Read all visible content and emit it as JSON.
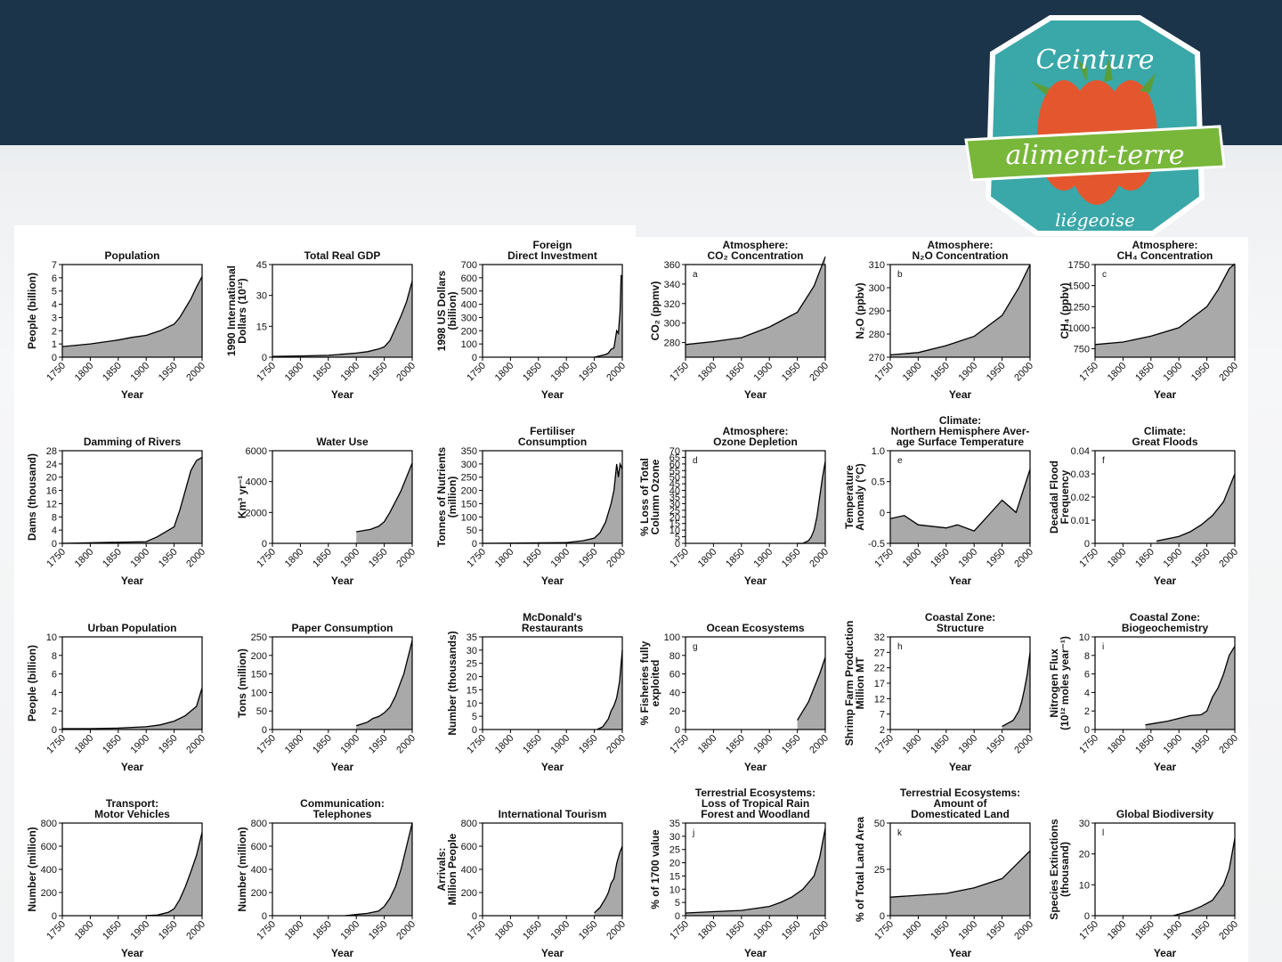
{
  "logo": {
    "top_text": "Ceinture",
    "middle_text": "aliment-terre",
    "bottom_text": "liégeoise"
  },
  "colors": {
    "banner": "#1c3449",
    "badge_fill": "#3aa7a8",
    "ribbon": "#78b73a",
    "carrot": "#e4572e",
    "area_fill": "#a9a9a9"
  },
  "chart_data": [
    {
      "type": "area",
      "title": [
        "Population"
      ],
      "xlabel": "Year",
      "ylabel": [
        "People (billion)"
      ],
      "xlim": [
        1750,
        2000
      ],
      "ylim": [
        0,
        7
      ],
      "yticks": [
        0,
        1,
        2,
        3,
        4,
        5,
        6,
        7
      ],
      "xticks": [
        1750,
        1800,
        1850,
        1900,
        1950,
        2000
      ],
      "x": [
        1750,
        1800,
        1850,
        1875,
        1900,
        1925,
        1950,
        1960,
        1970,
        1980,
        1990,
        2000
      ],
      "y": [
        0.8,
        1.0,
        1.3,
        1.5,
        1.65,
        2.0,
        2.5,
        3.0,
        3.7,
        4.4,
        5.3,
        6.1
      ]
    },
    {
      "type": "area",
      "title": [
        "Total Real GDP"
      ],
      "xlabel": "Year",
      "ylabel": [
        "1990 International",
        "Dollars (10¹²)"
      ],
      "xlim": [
        1750,
        2000
      ],
      "ylim": [
        0,
        45
      ],
      "yticks": [
        0,
        15,
        30,
        45
      ],
      "xticks": [
        1750,
        1800,
        1850,
        1900,
        1950,
        2000
      ],
      "x": [
        1750,
        1800,
        1850,
        1900,
        1920,
        1940,
        1950,
        1960,
        1970,
        1980,
        1990,
        2000
      ],
      "y": [
        0.4,
        0.6,
        0.9,
        2,
        2.7,
        4,
        5,
        8,
        14,
        20,
        27,
        37
      ]
    },
    {
      "type": "area",
      "title": [
        "Foreign",
        "Direct Investment"
      ],
      "xlabel": "Year",
      "ylabel": [
        "1998 US Dollars",
        "(billion)"
      ],
      "xlim": [
        1750,
        2000
      ],
      "ylim": [
        0,
        700
      ],
      "yticks": [
        0,
        100,
        200,
        300,
        400,
        500,
        600,
        700
      ],
      "xticks": [
        1750,
        1800,
        1850,
        1900,
        1950,
        2000
      ],
      "x": [
        1950,
        1960,
        1970,
        1975,
        1980,
        1985,
        1990,
        1993,
        1996,
        1998,
        2000
      ],
      "y": [
        0,
        10,
        20,
        30,
        60,
        70,
        200,
        180,
        350,
        620,
        600
      ]
    },
    {
      "type": "area",
      "title": [
        "Atmosphere:",
        "CO₂ Concentration"
      ],
      "xlabel": "Year",
      "ylabel": [
        "CO₂ (ppmv)"
      ],
      "panel_letter": "a",
      "xlim": [
        1750,
        2000
      ],
      "ylim": [
        265,
        360
      ],
      "yticks": [
        280,
        300,
        320,
        340,
        360
      ],
      "xticks": [
        1750,
        1800,
        1850,
        1900,
        1950,
        2000
      ],
      "x": [
        1750,
        1800,
        1850,
        1900,
        1950,
        1980,
        2000
      ],
      "y": [
        278,
        281,
        285,
        296,
        311,
        338,
        368
      ]
    },
    {
      "type": "area",
      "title": [
        "Atmosphere:",
        "N₂O Concentration"
      ],
      "xlabel": "Year",
      "ylabel": [
        "N₂O  (ppbv)"
      ],
      "panel_letter": "b",
      "xlim": [
        1750,
        2000
      ],
      "ylim": [
        270,
        310
      ],
      "yticks": [
        270,
        280,
        290,
        300,
        310
      ],
      "xticks": [
        1750,
        1800,
        1850,
        1900,
        1950,
        2000
      ],
      "x": [
        1750,
        1800,
        1850,
        1900,
        1950,
        1980,
        2000
      ],
      "y": [
        271,
        272,
        275,
        279,
        288,
        300,
        310
      ]
    },
    {
      "type": "area",
      "title": [
        "Atmosphere:",
        "CH₄ Concentration"
      ],
      "xlabel": "Year",
      "ylabel": [
        "CH₄ (ppbv)"
      ],
      "panel_letter": "c",
      "xlim": [
        1750,
        2000
      ],
      "ylim": [
        650,
        1750
      ],
      "yticks": [
        750,
        1000,
        1250,
        1500,
        1750
      ],
      "xticks": [
        1750,
        1800,
        1850,
        1900,
        1950,
        2000
      ],
      "x": [
        1750,
        1800,
        1850,
        1900,
        1920,
        1950,
        1970,
        1990,
        2000
      ],
      "y": [
        800,
        830,
        900,
        1000,
        1100,
        1250,
        1450,
        1700,
        1760
      ]
    },
    {
      "type": "area",
      "title": [
        "Damming of Rivers"
      ],
      "xlabel": "Year",
      "ylabel": [
        "Dams (thousand)"
      ],
      "xlim": [
        1750,
        2000
      ],
      "ylim": [
        0,
        28
      ],
      "yticks": [
        0,
        4,
        8,
        12,
        16,
        20,
        24,
        28
      ],
      "xticks": [
        1750,
        1800,
        1850,
        1900,
        1950,
        2000
      ],
      "x": [
        1750,
        1900,
        1920,
        1950,
        1960,
        1970,
        1980,
        1990,
        2000
      ],
      "y": [
        0,
        0.5,
        2,
        5,
        10,
        16,
        22,
        25,
        26
      ]
    },
    {
      "type": "area",
      "title": [
        "Water Use"
      ],
      "xlabel": "Year",
      "ylabel": [
        "Km³ yr⁻¹"
      ],
      "xlim": [
        1750,
        2000
      ],
      "ylim": [
        0,
        6000
      ],
      "yticks": [
        0,
        2000,
        4000,
        6000
      ],
      "xticks": [
        1750,
        1800,
        1850,
        1900,
        1950,
        2000
      ],
      "x": [
        1900,
        1925,
        1940,
        1950,
        1960,
        1970,
        1980,
        1990,
        2000
      ],
      "y": [
        750,
        900,
        1100,
        1400,
        2000,
        2700,
        3400,
        4300,
        5200
      ]
    },
    {
      "type": "area",
      "title": [
        "Fertiliser",
        "Consumption"
      ],
      "xlabel": "Year",
      "ylabel": [
        "Tonnes of Nutrients",
        "(million)"
      ],
      "xlim": [
        1750,
        2000
      ],
      "ylim": [
        0,
        350
      ],
      "yticks": [
        0,
        50,
        100,
        150,
        200,
        250,
        300,
        350
      ],
      "xticks": [
        1750,
        1800,
        1850,
        1900,
        1950,
        2000
      ],
      "x": [
        1750,
        1900,
        1930,
        1950,
        1960,
        1970,
        1980,
        1985,
        1988,
        1990,
        1993,
        1996,
        2000
      ],
      "y": [
        0,
        3,
        10,
        20,
        40,
        80,
        150,
        200,
        260,
        300,
        250,
        300,
        280
      ]
    },
    {
      "type": "area",
      "title": [
        "Atmosphere:",
        "Ozone Depletion"
      ],
      "xlabel": "Year",
      "ylabel": [
        "% Loss of Total",
        "Column Ozone"
      ],
      "panel_letter": "d",
      "xlim": [
        1750,
        2000
      ],
      "ylim": [
        0,
        70
      ],
      "yticks": [
        0,
        5,
        10,
        15,
        20,
        25,
        30,
        35,
        40,
        45,
        50,
        55,
        60,
        65,
        70
      ],
      "xticks": [
        1750,
        1800,
        1850,
        1900,
        1950,
        2000
      ],
      "x": [
        1950,
        1960,
        1970,
        1975,
        1980,
        1985,
        1990,
        1995,
        2000
      ],
      "y": [
        0,
        0,
        2,
        5,
        10,
        20,
        35,
        50,
        62
      ]
    },
    {
      "type": "area",
      "title": [
        "Climate:",
        "Northern Hemisphere Aver-",
        "age Surface Temperature"
      ],
      "xlabel": "Year",
      "ylabel": [
        "Temperature",
        "Anomaly (°C)"
      ],
      "panel_letter": "e",
      "xlim": [
        1750,
        2000
      ],
      "ylim": [
        -0.5,
        1.0
      ],
      "yticks": [
        -0.5,
        0,
        0.5,
        1.0
      ],
      "ytick_labels": [
        "-0.5",
        "0",
        "0.5",
        "1.0"
      ],
      "xticks": [
        1750,
        1800,
        1850,
        1900,
        1950,
        2000
      ],
      "baseline": -0.5,
      "x": [
        1750,
        1775,
        1800,
        1850,
        1870,
        1900,
        1920,
        1950,
        1975,
        2000
      ],
      "y": [
        -0.1,
        -0.05,
        -0.2,
        -0.25,
        -0.2,
        -0.3,
        -0.1,
        0.2,
        0.0,
        0.7
      ]
    },
    {
      "type": "area",
      "title": [
        "Climate:",
        "Great Floods"
      ],
      "xlabel": "Year",
      "ylabel": [
        "Decadal Flood",
        "Frequency"
      ],
      "panel_letter": "f",
      "xlim": [
        1750,
        2000
      ],
      "ylim": [
        0,
        0.04
      ],
      "yticks": [
        0,
        0.01,
        0.02,
        0.03,
        0.04
      ],
      "ytick_labels": [
        "0",
        "0.01",
        "0.02",
        "0.03",
        "0.04"
      ],
      "xticks": [
        1750,
        1800,
        1850,
        1900,
        1950,
        2000
      ],
      "x": [
        1860,
        1900,
        1920,
        1940,
        1960,
        1980,
        2000
      ],
      "y": [
        0.001,
        0.003,
        0.005,
        0.008,
        0.012,
        0.018,
        0.03
      ]
    },
    {
      "type": "area",
      "title": [
        "Urban Population"
      ],
      "xlabel": "Year",
      "ylabel": [
        "People (billion)"
      ],
      "xlim": [
        1750,
        2000
      ],
      "ylim": [
        0,
        10
      ],
      "yticks": [
        0,
        2,
        4,
        6,
        8,
        10
      ],
      "xticks": [
        1750,
        1800,
        1850,
        1900,
        1950,
        2000
      ],
      "x": [
        1750,
        1800,
        1850,
        1900,
        1925,
        1950,
        1970,
        1990,
        2000
      ],
      "y": [
        0.1,
        0.1,
        0.15,
        0.3,
        0.5,
        0.9,
        1.5,
        2.5,
        4.5
      ]
    },
    {
      "type": "area",
      "title": [
        "Paper Consumption"
      ],
      "xlabel": "Year",
      "ylabel": [
        "Tons (million)"
      ],
      "xlim": [
        1750,
        2000
      ],
      "ylim": [
        0,
        250
      ],
      "yticks": [
        0,
        50,
        100,
        150,
        200,
        250
      ],
      "xticks": [
        1750,
        1800,
        1850,
        1900,
        1950,
        2000
      ],
      "x": [
        1900,
        1910,
        1920,
        1930,
        1940,
        1950,
        1960,
        1970,
        1975,
        1980,
        1985,
        1990,
        1995,
        2000
      ],
      "y": [
        10,
        15,
        20,
        30,
        35,
        45,
        60,
        90,
        110,
        130,
        150,
        180,
        210,
        240
      ]
    },
    {
      "type": "area",
      "title": [
        "McDonald's",
        "Restaurants"
      ],
      "xlabel": "Year",
      "ylabel": [
        "Number (thousands)"
      ],
      "xlim": [
        1750,
        2000
      ],
      "ylim": [
        0,
        35
      ],
      "yticks": [
        0,
        5,
        10,
        15,
        20,
        25,
        30,
        35
      ],
      "xticks": [
        1750,
        1800,
        1850,
        1900,
        1950,
        2000
      ],
      "x": [
        1955,
        1965,
        1975,
        1980,
        1985,
        1990,
        1995,
        2000
      ],
      "y": [
        0,
        1,
        4,
        7,
        9,
        12,
        18,
        30
      ]
    },
    {
      "type": "area",
      "title": [
        "Ocean Ecosystems"
      ],
      "xlabel": "Year",
      "ylabel": [
        "% Fisheries fully",
        "exploited"
      ],
      "panel_letter": "g",
      "xlim": [
        1750,
        2000
      ],
      "ylim": [
        0,
        100
      ],
      "yticks": [
        0,
        20,
        40,
        60,
        80,
        100
      ],
      "xticks": [
        1750,
        1800,
        1850,
        1900,
        1950,
        2000
      ],
      "x": [
        1950,
        1960,
        1970,
        1980,
        1990,
        2000
      ],
      "y": [
        10,
        20,
        30,
        45,
        60,
        78
      ]
    },
    {
      "type": "area",
      "title": [
        "Coastal Zone:",
        "Structure"
      ],
      "xlabel": "Year",
      "ylabel": [
        "Shrimp Farm Production",
        "Million MT"
      ],
      "panel_letter": "h",
      "xlim": [
        1750,
        2000
      ],
      "ylim": [
        2,
        32
      ],
      "yticks": [
        2,
        7,
        12,
        17,
        22,
        27,
        32
      ],
      "xticks": [
        1750,
        1800,
        1850,
        1900,
        1950,
        2000
      ],
      "x": [
        1950,
        1960,
        1970,
        1980,
        1985,
        1990,
        1995,
        2000
      ],
      "y": [
        3,
        4,
        5,
        8,
        11,
        15,
        20,
        27
      ]
    },
    {
      "type": "area",
      "title": [
        "Coastal Zone:",
        "Biogeochemistry"
      ],
      "xlabel": "Year",
      "ylabel": [
        "Nitrogen Flux",
        "(10¹² moles year⁻¹)"
      ],
      "panel_letter": "i",
      "xlim": [
        1750,
        2000
      ],
      "ylim": [
        0,
        10
      ],
      "yticks": [
        0,
        2,
        4,
        6,
        8,
        10
      ],
      "xticks": [
        1750,
        1800,
        1850,
        1900,
        1950,
        2000
      ],
      "x": [
        1840,
        1860,
        1880,
        1900,
        1920,
        1940,
        1950,
        1960,
        1970,
        1980,
        1990,
        2000
      ],
      "y": [
        0.5,
        0.7,
        0.9,
        1.2,
        1.5,
        1.6,
        2.0,
        3.5,
        4.5,
        6,
        8,
        9
      ]
    },
    {
      "type": "area",
      "title": [
        "Transport:",
        "Motor Vehicles"
      ],
      "xlabel": "Year",
      "ylabel": [
        "Number (million)"
      ],
      "xlim": [
        1750,
        2000
      ],
      "ylim": [
        0,
        800
      ],
      "yticks": [
        0,
        200,
        400,
        600,
        800
      ],
      "xticks": [
        1750,
        1800,
        1850,
        1900,
        1950,
        2000
      ],
      "x": [
        1900,
        1920,
        1940,
        1950,
        1960,
        1970,
        1980,
        1990,
        2000
      ],
      "y": [
        1,
        5,
        30,
        60,
        140,
        250,
        380,
        520,
        720
      ]
    },
    {
      "type": "area",
      "title": [
        "Communication:",
        "Telephones"
      ],
      "xlabel": "Year",
      "ylabel": [
        "Number (million)"
      ],
      "xlim": [
        1750,
        2000
      ],
      "ylim": [
        0,
        800
      ],
      "yticks": [
        0,
        200,
        400,
        600,
        800
      ],
      "xticks": [
        1750,
        1800,
        1850,
        1900,
        1950,
        2000
      ],
      "x": [
        1880,
        1900,
        1920,
        1940,
        1950,
        1960,
        1970,
        1980,
        1990,
        2000
      ],
      "y": [
        0,
        10,
        20,
        40,
        80,
        150,
        250,
        400,
        600,
        800
      ]
    },
    {
      "type": "area",
      "title": [
        "International Tourism"
      ],
      "xlabel": "Year",
      "ylabel": [
        "Arrivals:",
        "Million People"
      ],
      "xlim": [
        1750,
        2000
      ],
      "ylim": [
        0,
        800
      ],
      "yticks": [
        0,
        200,
        400,
        600,
        800
      ],
      "xticks": [
        1750,
        1800,
        1850,
        1900,
        1950,
        2000
      ],
      "x": [
        1950,
        1960,
        1970,
        1975,
        1980,
        1985,
        1990,
        1995,
        2000
      ],
      "y": [
        25,
        70,
        150,
        200,
        280,
        320,
        450,
        540,
        600
      ]
    },
    {
      "type": "area",
      "title": [
        "Terrestrial Ecosystems:",
        "Loss of Tropical Rain",
        "Forest and Woodland"
      ],
      "xlabel": "Year",
      "ylabel": [
        "% of 1700 value"
      ],
      "panel_letter": "j",
      "xlim": [
        1750,
        2000
      ],
      "ylim": [
        0,
        35
      ],
      "yticks": [
        0,
        5,
        10,
        15,
        20,
        25,
        30,
        35
      ],
      "xticks": [
        1750,
        1800,
        1850,
        1900,
        1950,
        2000
      ],
      "x": [
        1750,
        1800,
        1850,
        1900,
        1920,
        1940,
        1960,
        1980,
        1990,
        2000
      ],
      "y": [
        1,
        1.5,
        2,
        3.5,
        5,
        7,
        10,
        15,
        22,
        33
      ]
    },
    {
      "type": "area",
      "title": [
        "Terrestrial Ecosystems:",
        "Amount of",
        "Domesticated Land"
      ],
      "xlabel": "Year",
      "ylabel": [
        "% of Total Land Area"
      ],
      "panel_letter": "k",
      "xlim": [
        1750,
        2000
      ],
      "ylim": [
        0,
        50
      ],
      "yticks": [
        0,
        25,
        50
      ],
      "xticks": [
        1750,
        1800,
        1850,
        1900,
        1950,
        2000
      ],
      "x": [
        1750,
        1800,
        1850,
        1900,
        1950,
        2000
      ],
      "y": [
        10,
        11,
        12,
        15,
        20,
        35
      ]
    },
    {
      "type": "area",
      "title": [
        "Global Biodiversity"
      ],
      "xlabel": "Year",
      "ylabel": [
        "Species Extinctions",
        "(thousand)"
      ],
      "panel_letter": "l",
      "xlim": [
        1750,
        2000
      ],
      "ylim": [
        0,
        30
      ],
      "yticks": [
        0,
        10,
        20,
        30
      ],
      "xticks": [
        1750,
        1800,
        1850,
        1900,
        1950,
        2000
      ],
      "x": [
        1890,
        1900,
        1920,
        1940,
        1960,
        1980,
        1990,
        2000
      ],
      "y": [
        0,
        0.5,
        1.5,
        3,
        5,
        10,
        15,
        25
      ]
    }
  ]
}
